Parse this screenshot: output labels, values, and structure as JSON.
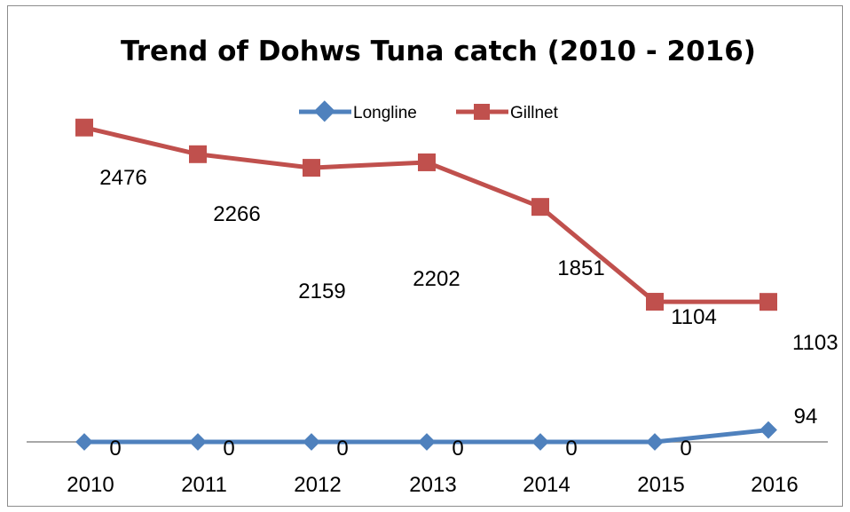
{
  "chart_data": {
    "type": "line",
    "title": "Trend of Dohws Tuna catch (2010 - 2016)",
    "xlabel": "",
    "ylabel": "",
    "categories": [
      "2010",
      "2011",
      "2012",
      "2013",
      "2014",
      "2015",
      "2016"
    ],
    "series": [
      {
        "name": "Longline",
        "values": [
          0,
          0,
          0,
          0,
          0,
          0,
          94
        ],
        "color": "#4F81BD",
        "marker": "diamond"
      },
      {
        "name": "Gillnet",
        "values": [
          2476,
          2266,
          2159,
          2202,
          1851,
          1104,
          1103
        ],
        "color": "#C0504D",
        "marker": "square"
      }
    ],
    "ylim": [
      0,
      2600
    ],
    "grid": false,
    "legend_position": "top",
    "data_labels": true
  }
}
